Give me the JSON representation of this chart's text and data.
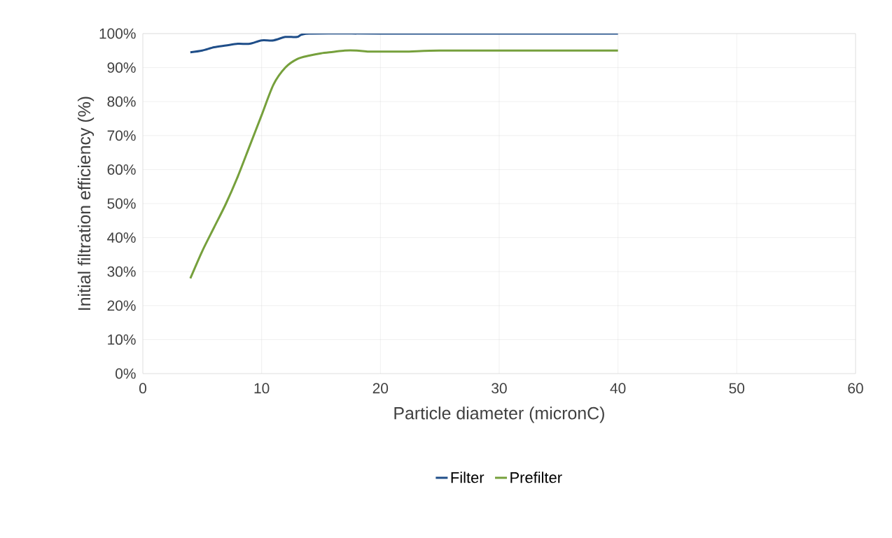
{
  "chart_data": {
    "type": "line",
    "xlabel": "Particle diameter (micronC)",
    "ylabel": "Initial filtration efficiency (%)",
    "xlim": [
      0,
      60
    ],
    "xticks": [
      0,
      10,
      20,
      30,
      40,
      50,
      60
    ],
    "ylim": [
      0,
      100
    ],
    "yticks": [
      {
        "value": 0,
        "label": "0%"
      },
      {
        "value": 10,
        "label": "10%"
      },
      {
        "value": 20,
        "label": "20%"
      },
      {
        "value": 30,
        "label": "30%"
      },
      {
        "value": 40,
        "label": "40%"
      },
      {
        "value": 50,
        "label": "50%"
      },
      {
        "value": 60,
        "label": "60%"
      },
      {
        "value": 70,
        "label": "70%"
      },
      {
        "value": 80,
        "label": "80%"
      },
      {
        "value": 90,
        "label": "90%"
      },
      {
        "value": 100,
        "label": "100%"
      }
    ],
    "grid": true,
    "legend": "bottom",
    "marker": "none",
    "line_style": "solid",
    "series": [
      {
        "name": "Filter",
        "color": "#1f4e89",
        "x": [
          4,
          5,
          6,
          7,
          8,
          9,
          10,
          11,
          12,
          13,
          14,
          20,
          30,
          40
        ],
        "values": [
          94.5,
          95,
          96,
          96.5,
          97,
          97,
          98,
          98,
          99,
          99,
          100,
          100,
          100,
          100
        ]
      },
      {
        "name": "Prefilter",
        "color": "#76a03c",
        "x": [
          4,
          5,
          6,
          7,
          8,
          9,
          10,
          11,
          12,
          13,
          14,
          15,
          16,
          17,
          18,
          19,
          20,
          22,
          25,
          30,
          40
        ],
        "values": [
          28,
          36,
          43,
          50,
          58,
          67,
          76,
          85,
          90,
          92.5,
          93.5,
          94.2,
          94.6,
          95,
          95,
          94.7,
          94.7,
          94.7,
          95,
          95,
          95
        ]
      }
    ]
  }
}
